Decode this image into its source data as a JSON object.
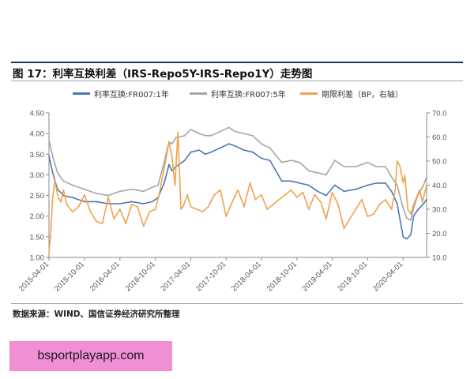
{
  "figure": {
    "title": "图 17：利率互换利差（IRS-Repo5Y-IRS-Repo1Y）走势图",
    "source": "数据来源：WIND、国信证券经济研究所整理"
  },
  "watermark": {
    "text": "bsportplayapp.com"
  },
  "chart_data": {
    "type": "line",
    "title": "",
    "xlabel": "",
    "ylabel": "",
    "grid": false,
    "legend_position": "top",
    "ylim_left": [
      1.0,
      4.5
    ],
    "ylim_right": [
      10.0,
      70.0
    ],
    "yticks_left": [
      "1.00",
      "1.50",
      "2.00",
      "2.50",
      "3.00",
      "3.50",
      "4.00",
      "4.50"
    ],
    "yticks_right": [
      "10.0",
      "20.0",
      "30.0",
      "40.0",
      "50.0",
      "60.0",
      "70.0"
    ],
    "x_range": [
      "2015-04-01",
      "2020-07-31"
    ],
    "x_ticks": [
      "2015-04-01",
      "2015-10-01",
      "2016-04-01",
      "2016-10-01",
      "2017-04-01",
      "2017-10-01",
      "2018-04-01",
      "2018-10-01",
      "2019-04-01",
      "2019-10-01",
      "2020-04-01"
    ],
    "series": [
      {
        "name": "利率互换:FR007:1年",
        "axis": "left",
        "color": "#4a78b5",
        "x": [
          "2015-04-01",
          "2015-04-20",
          "2015-05-15",
          "2015-06-15",
          "2015-08-01",
          "2015-10-01",
          "2015-12-01",
          "2016-02-01",
          "2016-04-01",
          "2016-06-01",
          "2016-08-01",
          "2016-09-15",
          "2016-10-15",
          "2016-11-15",
          "2016-12-10",
          "2016-12-25",
          "2017-01-15",
          "2017-03-01",
          "2017-04-01",
          "2017-05-15",
          "2017-06-15",
          "2017-07-15",
          "2017-09-01",
          "2017-10-15",
          "2017-11-15",
          "2018-01-01",
          "2018-02-15",
          "2018-04-01",
          "2018-05-15",
          "2018-07-15",
          "2018-09-01",
          "2018-10-15",
          "2018-12-01",
          "2019-01-15",
          "2019-03-01",
          "2019-04-15",
          "2019-06-01",
          "2019-08-01",
          "2019-10-01",
          "2019-11-15",
          "2020-01-01",
          "2020-02-01",
          "2020-03-01",
          "2020-04-01",
          "2020-04-20",
          "2020-05-10",
          "2020-05-25",
          "2020-06-15",
          "2020-07-15",
          "2020-07-31"
        ],
        "values": [
          3.45,
          3.05,
          2.65,
          2.5,
          2.45,
          2.35,
          2.35,
          2.3,
          2.3,
          2.35,
          2.3,
          2.35,
          2.45,
          2.8,
          3.25,
          3.1,
          3.2,
          3.35,
          3.55,
          3.6,
          3.5,
          3.55,
          3.65,
          3.75,
          3.7,
          3.6,
          3.55,
          3.4,
          3.35,
          2.85,
          2.85,
          2.8,
          2.75,
          2.6,
          2.5,
          2.75,
          2.6,
          2.65,
          2.75,
          2.8,
          2.8,
          2.6,
          2.3,
          1.5,
          1.45,
          1.55,
          2.0,
          2.15,
          2.3,
          2.4
        ]
      },
      {
        "name": "利率互换:FR007:5年",
        "axis": "left",
        "color": "#a6a6a6",
        "x": [
          "2015-04-01",
          "2015-04-20",
          "2015-05-15",
          "2015-06-15",
          "2015-08-01",
          "2015-10-01",
          "2015-12-01",
          "2016-02-01",
          "2016-04-01",
          "2016-06-01",
          "2016-08-01",
          "2016-09-15",
          "2016-10-15",
          "2016-11-15",
          "2016-12-10",
          "2016-12-25",
          "2017-01-15",
          "2017-03-01",
          "2017-04-01",
          "2017-05-15",
          "2017-06-15",
          "2017-07-15",
          "2017-09-01",
          "2017-10-15",
          "2017-11-15",
          "2018-01-01",
          "2018-02-15",
          "2018-04-01",
          "2018-05-15",
          "2018-07-15",
          "2018-09-01",
          "2018-10-15",
          "2018-12-01",
          "2019-01-15",
          "2019-03-01",
          "2019-04-15",
          "2019-06-01",
          "2019-08-01",
          "2019-10-01",
          "2019-11-15",
          "2020-01-01",
          "2020-02-01",
          "2020-03-01",
          "2020-04-01",
          "2020-04-20",
          "2020-05-10",
          "2020-05-25",
          "2020-06-15",
          "2020-07-15",
          "2020-07-31"
        ],
        "values": [
          3.85,
          3.45,
          3.05,
          2.85,
          2.75,
          2.65,
          2.55,
          2.5,
          2.6,
          2.65,
          2.6,
          2.7,
          2.75,
          3.3,
          3.8,
          3.75,
          3.9,
          3.95,
          4.1,
          4.0,
          3.95,
          3.95,
          4.05,
          4.15,
          4.05,
          4.0,
          3.95,
          3.75,
          3.65,
          3.3,
          3.35,
          3.3,
          3.1,
          3.05,
          3.0,
          3.35,
          3.2,
          3.2,
          3.3,
          3.2,
          3.2,
          2.95,
          2.75,
          2.2,
          1.95,
          1.9,
          2.2,
          2.5,
          2.75,
          2.95
        ]
      },
      {
        "name": "期限利差（BP，右轴）",
        "axis": "right",
        "color": "#f0a24e",
        "x": [
          "2015-04-01",
          "2015-04-10",
          "2015-04-20",
          "2015-05-01",
          "2015-05-15",
          "2015-06-01",
          "2015-06-15",
          "2015-07-01",
          "2015-08-01",
          "2015-09-01",
          "2015-10-01",
          "2015-11-01",
          "2015-12-01",
          "2016-01-01",
          "2016-02-01",
          "2016-03-01",
          "2016-04-01",
          "2016-05-01",
          "2016-06-01",
          "2016-07-01",
          "2016-08-01",
          "2016-09-01",
          "2016-10-01",
          "2016-10-20",
          "2016-11-10",
          "2016-11-25",
          "2016-12-10",
          "2016-12-25",
          "2017-01-10",
          "2017-01-25",
          "2017-02-10",
          "2017-02-20",
          "2017-03-01",
          "2017-03-15",
          "2017-04-01",
          "2017-05-01",
          "2017-06-01",
          "2017-07-01",
          "2017-08-01",
          "2017-09-01",
          "2017-10-01",
          "2017-11-01",
          "2017-12-01",
          "2018-01-01",
          "2018-02-01",
          "2018-03-01",
          "2018-04-01",
          "2018-05-01",
          "2018-06-01",
          "2018-07-01",
          "2018-08-01",
          "2018-09-01",
          "2018-10-01",
          "2018-11-01",
          "2018-12-01",
          "2019-01-01",
          "2019-02-01",
          "2019-03-01",
          "2019-04-01",
          "2019-05-01",
          "2019-06-01",
          "2019-07-01",
          "2019-08-01",
          "2019-09-01",
          "2019-10-01",
          "2019-11-01",
          "2019-12-01",
          "2020-01-01",
          "2020-02-01",
          "2020-02-20",
          "2020-03-01",
          "2020-03-15",
          "2020-04-01",
          "2020-04-10",
          "2020-04-25",
          "2020-05-10",
          "2020-05-25",
          "2020-06-10",
          "2020-06-25",
          "2020-07-10",
          "2020-07-31"
        ],
        "values": [
          12,
          20,
          35,
          42,
          36,
          33,
          38,
          32,
          29,
          31,
          36,
          29,
          25,
          24,
          35,
          26,
          30,
          24,
          32,
          31,
          23,
          29,
          30,
          36,
          45,
          51,
          58,
          52,
          40,
          62,
          30,
          31,
          33,
          36,
          31,
          30,
          29,
          31,
          36,
          38,
          27,
          33,
          38,
          31,
          41,
          34,
          36,
          30,
          32,
          34,
          36,
          38,
          35,
          37,
          30,
          36,
          33,
          26,
          37,
          32,
          22,
          26,
          30,
          34,
          27,
          28,
          32,
          34,
          30,
          38,
          50,
          48,
          41,
          44,
          30,
          28,
          32,
          35,
          38,
          33,
          40
        ]
      }
    ]
  }
}
